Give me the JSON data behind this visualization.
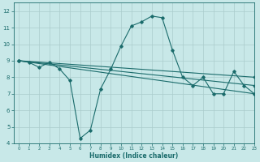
{
  "title": "",
  "xlabel": "Humidex (Indice chaleur)",
  "ylabel": "",
  "xlim": [
    -0.5,
    23
  ],
  "ylim": [
    4,
    12.5
  ],
  "yticks": [
    4,
    5,
    6,
    7,
    8,
    9,
    10,
    11,
    12
  ],
  "xticks": [
    0,
    1,
    2,
    3,
    4,
    5,
    6,
    7,
    8,
    9,
    10,
    11,
    12,
    13,
    14,
    15,
    16,
    17,
    18,
    19,
    20,
    21,
    22,
    23
  ],
  "bg_color": "#c8e8e8",
  "line_color": "#1a6b6b",
  "grid_color": "#aacccc",
  "series": [
    {
      "x": [
        0,
        1,
        2,
        3,
        4,
        5,
        6,
        7,
        8,
        9,
        10,
        11,
        12,
        13,
        14,
        15,
        16,
        17,
        18,
        19,
        20,
        21,
        22,
        23
      ],
      "y": [
        9.0,
        8.9,
        8.6,
        8.9,
        8.5,
        7.8,
        4.3,
        4.8,
        7.3,
        8.5,
        9.9,
        11.1,
        11.35,
        11.7,
        11.6,
        9.65,
        8.0,
        7.5,
        8.0,
        7.0,
        7.0,
        8.35,
        7.5,
        7.0
      ]
    },
    {
      "x": [
        0,
        23
      ],
      "y": [
        9.0,
        8.0
      ]
    },
    {
      "x": [
        0,
        23
      ],
      "y": [
        9.0,
        7.5
      ]
    },
    {
      "x": [
        0,
        23
      ],
      "y": [
        9.0,
        7.0
      ]
    }
  ]
}
